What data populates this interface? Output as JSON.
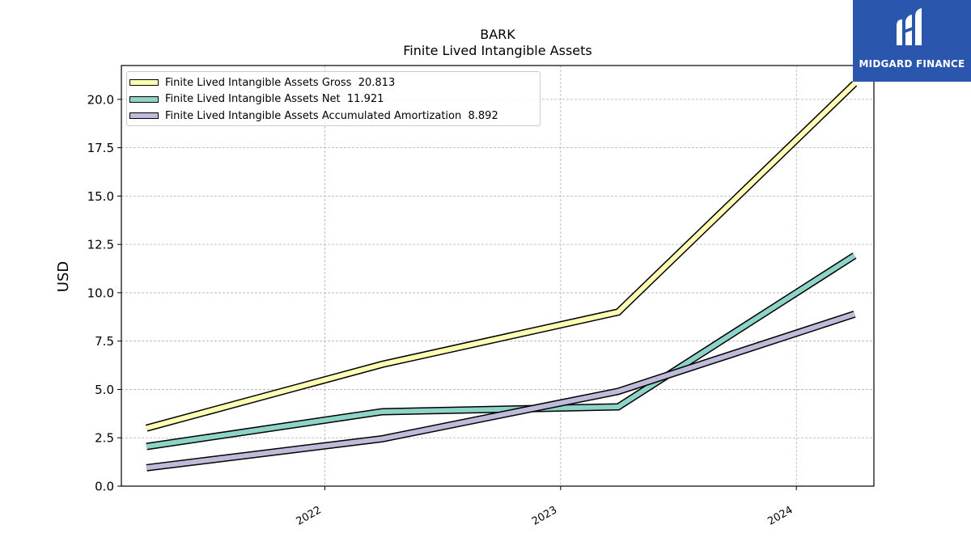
{
  "chart_data": {
    "type": "line",
    "title": "BARK",
    "subtitle": "Finite Lived Intangible Assets",
    "ylabel": "USD",
    "xlabel": "",
    "x": [
      "2021-03-31",
      "2022-03-31",
      "2023-03-31",
      "2024-03-31"
    ],
    "x_ticks": [
      "2022",
      "2023",
      "2024"
    ],
    "xlim": [
      "2021-02-20",
      "2024-04-30"
    ],
    "ylim": [
      0,
      21.75
    ],
    "y_ticks": [
      "0.0",
      "2.5",
      "5.0",
      "7.5",
      "10.0",
      "12.5",
      "15.0",
      "17.5",
      "20.0"
    ],
    "grid": true,
    "legend_position": "top-left",
    "series": [
      {
        "name": "Finite Lived Intangible Assets Gross",
        "legend_value": "20.813",
        "color": "#ffffb3",
        "values": [
          3.0,
          6.3,
          9.0,
          20.813
        ]
      },
      {
        "name": "Finite Lived Intangible Assets Net",
        "legend_value": "11.921",
        "color": "#8dd3c7",
        "values": [
          2.05,
          3.85,
          4.1,
          11.921
        ]
      },
      {
        "name": "Finite Lived Intangible Assets Accumulated Amortization",
        "legend_value": "8.892",
        "color": "#bebada",
        "values": [
          0.95,
          2.45,
          4.9,
          8.892
        ]
      }
    ]
  },
  "logo": {
    "text": "MIDGARD FINANCE"
  }
}
